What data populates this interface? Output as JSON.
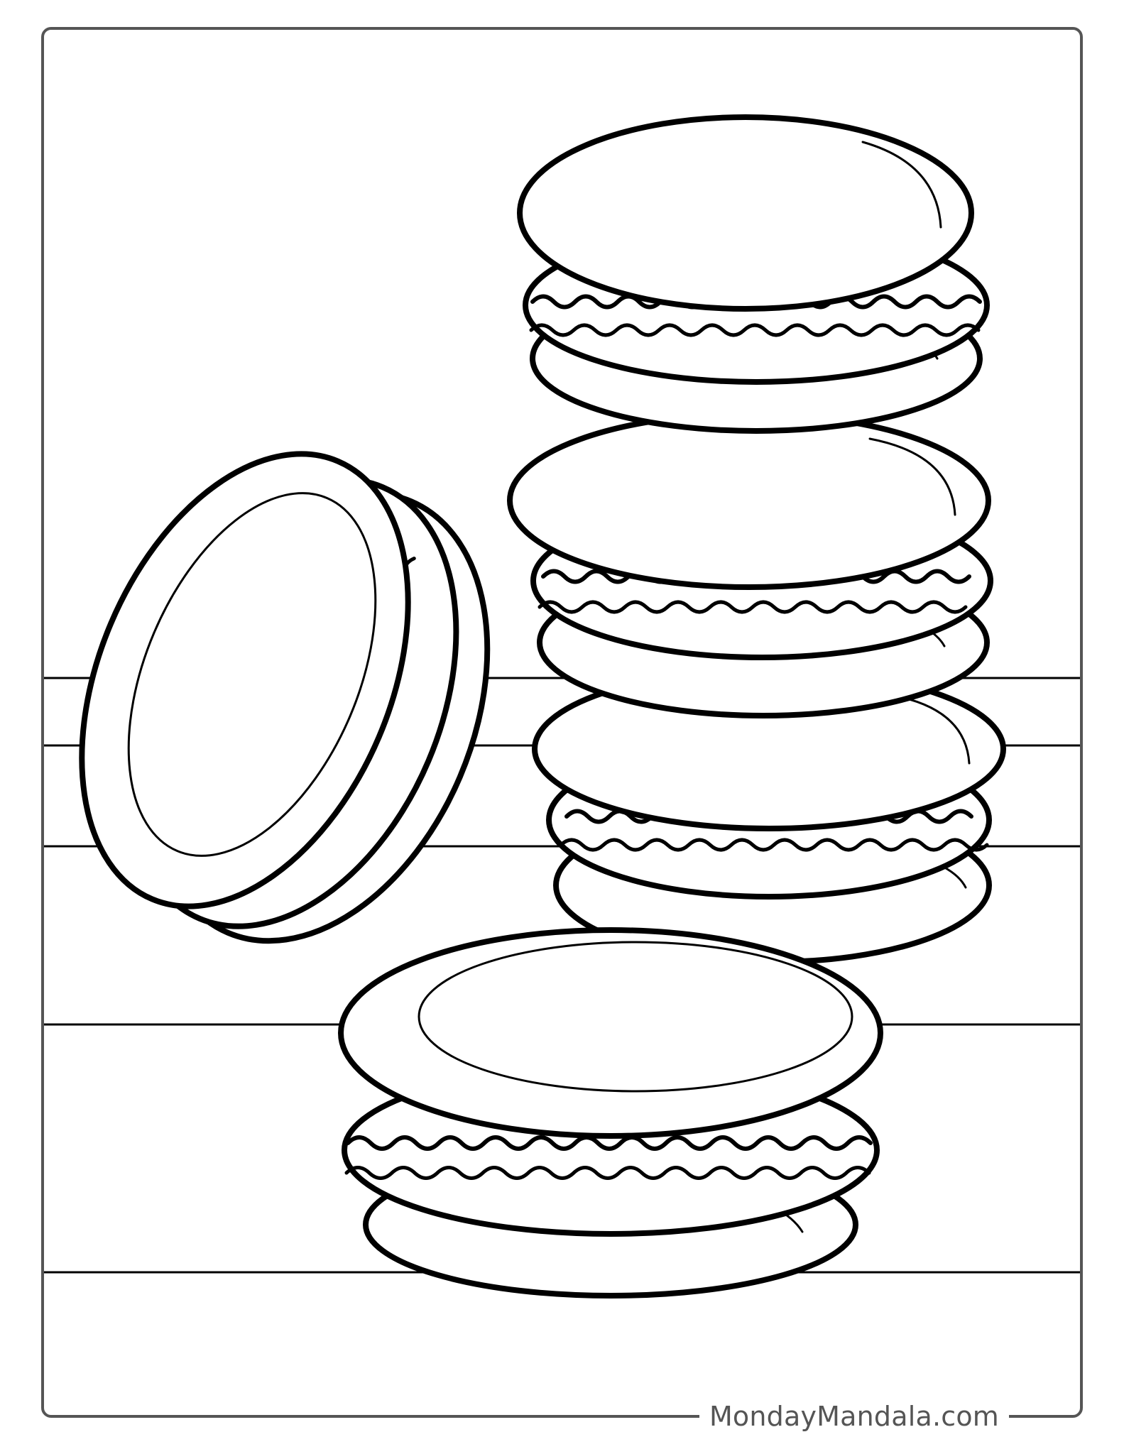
{
  "page": {
    "subject": "macarons coloring page",
    "line_color": "#000000",
    "background_color": "#ffffff",
    "frame_color": "#555555"
  },
  "footer": {
    "brand": "MondayMandala.com",
    "brand_color": "#555555"
  }
}
